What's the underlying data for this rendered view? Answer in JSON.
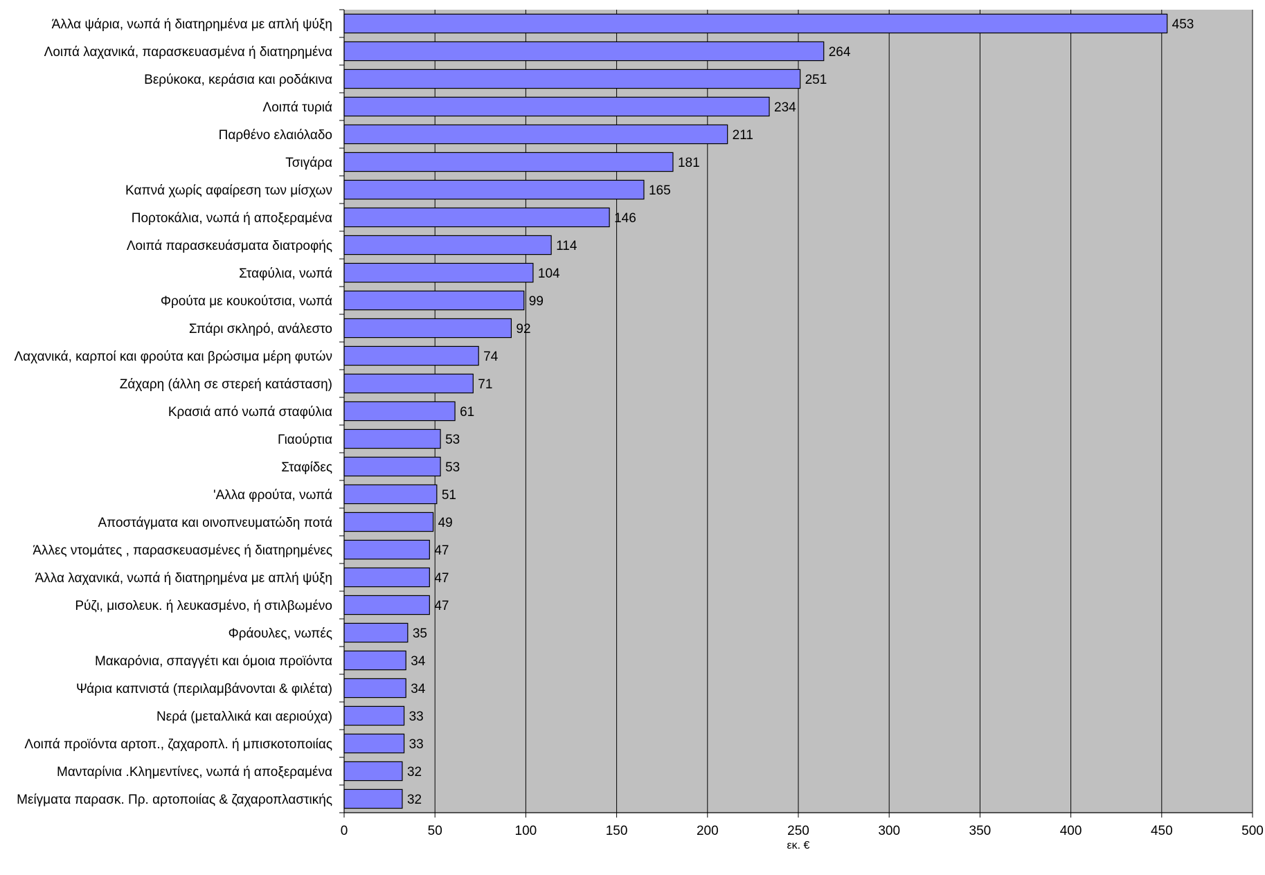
{
  "chart_data": {
    "type": "bar",
    "orientation": "horizontal",
    "categories": [
      "Άλλα ψάρια, νωπά ή διατηρημένα με απλή ψύξη",
      "Λοιπά λαχανικά, παρασκευασμένα ή διατηρημένα",
      "Βερύκοκα, κεράσια και ροδάκινα",
      "Λοιπά τυριά",
      "Παρθένο ελαιόλαδο",
      "Τσιγάρα",
      "Καπνά χωρίς αφαίρεση των μίσχων",
      "Πορτοκάλια, νωπά ή αποξεραμένα",
      "Λοιπά παρασκευάσματα διατροφής",
      "Σταφύλια, νωπά",
      "Φρούτα με κουκούτσια, νωπά",
      "Σπάρι σκληρό, ανάλεστο",
      "Λαχανικά, καρποί και φρούτα και βρώσιμα μέρη φυτών",
      "Ζάχαρη (άλλη σε στερεή κατάσταση)",
      "Κρασιά από νωπά σταφύλια",
      "Γιαούρτια",
      "Σταφίδες",
      "'Αλλα φρούτα, νωπά",
      "Αποστάγματα και οινοπνευματώδη ποτά",
      "Άλλες ντομάτες , παρασκευασμένες ή διατηρημένες",
      "Άλλα λαχανικά, νωπά ή διατηρημένα με απλή ψύξη",
      "Ρύζι, μισολευκ. ή λευκασμένο, ή στιλβωμένο",
      "Φράουλες, νωπές",
      "Μακαρόνια, σπαγγέτι και όμοια προϊόντα",
      "Ψάρια καπνιστά (περιλαμβάνονται & φιλέτα)",
      "Νερά (μεταλλικά και αεριούχα)",
      "Λοιπά προϊόντα αρτοπ., ζαχαροπλ. ή μπισκοτοποιίας",
      "Μανταρίνια .Κλημεντίνες, νωπά ή αποξεραμένα",
      "Μείγματα παρασκ. Πρ. αρτοποιίας & ζαχαροπλαστικής"
    ],
    "values": [
      453,
      264,
      251,
      234,
      211,
      181,
      165,
      146,
      114,
      104,
      99,
      92,
      74,
      71,
      61,
      53,
      53,
      51,
      49,
      47,
      47,
      47,
      35,
      34,
      34,
      33,
      33,
      32,
      32
    ],
    "data_labels": [
      "453",
      "264",
      "251",
      "234",
      "211",
      "181",
      "165",
      "146",
      "114",
      "104",
      "99",
      "92",
      "74",
      "71",
      "61",
      "53",
      "53",
      "51",
      "49",
      "47",
      "47",
      "47",
      "35",
      "34",
      "34",
      "33",
      "33",
      "32",
      "32"
    ],
    "xlabel": "εκ. €",
    "xlim": [
      0,
      500
    ],
    "xticks": [
      0,
      50,
      100,
      150,
      200,
      250,
      300,
      350,
      400,
      450,
      500
    ],
    "xtick_labels": [
      "0",
      "50",
      "100",
      "150",
      "200",
      "250",
      "300",
      "350",
      "400",
      "450",
      "500"
    ],
    "grid": "vertical",
    "legend": "none",
    "colors": {
      "bar_fill": "#7f7fff",
      "bar_stroke": "#000000",
      "plot_background": "#c0c0c0",
      "gridline": "#000000",
      "page_background": "#ffffff"
    }
  }
}
